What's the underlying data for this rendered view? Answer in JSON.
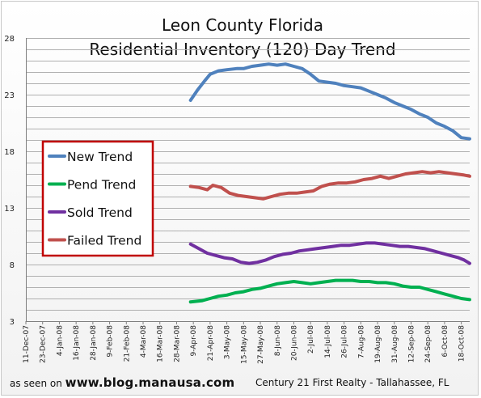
{
  "chart_data": {
    "type": "line",
    "title_lines": [
      "Leon County Florida",
      "Residential Inventory (120) Day Trend"
    ],
    "xlabel": "",
    "ylabel": "",
    "ylim": [
      3,
      28
    ],
    "y_ticks": [
      "3",
      "8",
      "13",
      "18",
      "23",
      "28"
    ],
    "x_ticks": [
      "11-Dec-07",
      "23-Dec-07",
      "4-Jan-08",
      "16-Jan-08",
      "28-Jan-08",
      "9-Feb-08",
      "21-Feb-08",
      "4-Mar-08",
      "16-Mar-08",
      "28-Mar-08",
      "9-Apr-08",
      "21-Apr-08",
      "3-May-08",
      "15-May-08",
      "27-May-08",
      "8-Jun-08",
      "20-Jun-08",
      "2-Jul-08",
      "14-Jul-08",
      "26-Jul-08",
      "7-Aug-08",
      "19-Aug-08",
      "31-Aug-08",
      "12-Sep-08",
      "24-Sep-08",
      "6-Oct-08",
      "18-Oct-08"
    ],
    "x_start": "11-Dec-07",
    "x_end": "24-Oct-08",
    "grid": "horizontal",
    "legend_position": "left",
    "series": [
      {
        "name": "New Trend",
        "color": "#4f81bd",
        "points": [
          [
            "7-Apr-08",
            22.5
          ],
          [
            "12-Apr-08",
            23.4
          ],
          [
            "17-Apr-08",
            24.2
          ],
          [
            "21-Apr-08",
            24.8
          ],
          [
            "27-Apr-08",
            25.1
          ],
          [
            "3-May-08",
            25.2
          ],
          [
            "10-May-08",
            25.3
          ],
          [
            "15-May-08",
            25.3
          ],
          [
            "21-May-08",
            25.5
          ],
          [
            "27-May-08",
            25.6
          ],
          [
            "2-Jun-08",
            25.7
          ],
          [
            "8-Jun-08",
            25.6
          ],
          [
            "14-Jun-08",
            25.7
          ],
          [
            "20-Jun-08",
            25.5
          ],
          [
            "26-Jun-08",
            25.3
          ],
          [
            "2-Jul-08",
            24.8
          ],
          [
            "8-Jul-08",
            24.2
          ],
          [
            "14-Jul-08",
            24.1
          ],
          [
            "20-Jul-08",
            24.0
          ],
          [
            "26-Jul-08",
            23.8
          ],
          [
            "1-Aug-08",
            23.7
          ],
          [
            "7-Aug-08",
            23.6
          ],
          [
            "13-Aug-08",
            23.3
          ],
          [
            "19-Aug-08",
            23.0
          ],
          [
            "25-Aug-08",
            22.7
          ],
          [
            "31-Aug-08",
            22.3
          ],
          [
            "6-Sep-08",
            22.0
          ],
          [
            "12-Sep-08",
            21.7
          ],
          [
            "18-Sep-08",
            21.3
          ],
          [
            "24-Sep-08",
            21.0
          ],
          [
            "30-Sep-08",
            20.5
          ],
          [
            "6-Oct-08",
            20.2
          ],
          [
            "12-Oct-08",
            19.8
          ],
          [
            "18-Oct-08",
            19.2
          ],
          [
            "24-Oct-08",
            19.1
          ]
        ]
      },
      {
        "name": "Pend Trend",
        "color": "#00b050",
        "points": [
          [
            "7-Apr-08",
            4.7
          ],
          [
            "15-Apr-08",
            4.8
          ],
          [
            "21-Apr-08",
            5.0
          ],
          [
            "27-Apr-08",
            5.2
          ],
          [
            "3-May-08",
            5.3
          ],
          [
            "9-May-08",
            5.5
          ],
          [
            "15-May-08",
            5.6
          ],
          [
            "21-May-08",
            5.8
          ],
          [
            "27-May-08",
            5.9
          ],
          [
            "2-Jun-08",
            6.1
          ],
          [
            "8-Jun-08",
            6.3
          ],
          [
            "14-Jun-08",
            6.4
          ],
          [
            "20-Jun-08",
            6.5
          ],
          [
            "26-Jun-08",
            6.4
          ],
          [
            "2-Jul-08",
            6.3
          ],
          [
            "8-Jul-08",
            6.4
          ],
          [
            "14-Jul-08",
            6.5
          ],
          [
            "20-Jul-08",
            6.6
          ],
          [
            "26-Jul-08",
            6.6
          ],
          [
            "1-Aug-08",
            6.6
          ],
          [
            "7-Aug-08",
            6.5
          ],
          [
            "13-Aug-08",
            6.5
          ],
          [
            "19-Aug-08",
            6.4
          ],
          [
            "25-Aug-08",
            6.4
          ],
          [
            "31-Aug-08",
            6.3
          ],
          [
            "6-Sep-08",
            6.1
          ],
          [
            "12-Sep-08",
            6.0
          ],
          [
            "18-Sep-08",
            6.0
          ],
          [
            "24-Sep-08",
            5.8
          ],
          [
            "30-Sep-08",
            5.6
          ],
          [
            "6-Oct-08",
            5.4
          ],
          [
            "12-Oct-08",
            5.2
          ],
          [
            "18-Oct-08",
            5.0
          ],
          [
            "24-Oct-08",
            4.9
          ]
        ]
      },
      {
        "name": "Sold Trend",
        "color": "#7030a0",
        "points": [
          [
            "7-Apr-08",
            9.8
          ],
          [
            "13-Apr-08",
            9.4
          ],
          [
            "19-Apr-08",
            9.0
          ],
          [
            "25-Apr-08",
            8.8
          ],
          [
            "1-May-08",
            8.6
          ],
          [
            "7-May-08",
            8.5
          ],
          [
            "13-May-08",
            8.2
          ],
          [
            "19-May-08",
            8.1
          ],
          [
            "25-May-08",
            8.2
          ],
          [
            "31-May-08",
            8.4
          ],
          [
            "6-Jun-08",
            8.7
          ],
          [
            "12-Jun-08",
            8.9
          ],
          [
            "18-Jun-08",
            9.0
          ],
          [
            "24-Jun-08",
            9.2
          ],
          [
            "30-Jun-08",
            9.3
          ],
          [
            "6-Jul-08",
            9.4
          ],
          [
            "12-Jul-08",
            9.5
          ],
          [
            "18-Jul-08",
            9.6
          ],
          [
            "24-Jul-08",
            9.7
          ],
          [
            "30-Jul-08",
            9.7
          ],
          [
            "5-Aug-08",
            9.8
          ],
          [
            "11-Aug-08",
            9.9
          ],
          [
            "17-Aug-08",
            9.9
          ],
          [
            "23-Aug-08",
            9.8
          ],
          [
            "29-Aug-08",
            9.7
          ],
          [
            "4-Sep-08",
            9.6
          ],
          [
            "10-Sep-08",
            9.6
          ],
          [
            "16-Sep-08",
            9.5
          ],
          [
            "22-Sep-08",
            9.4
          ],
          [
            "28-Sep-08",
            9.2
          ],
          [
            "4-Oct-08",
            9.0
          ],
          [
            "10-Oct-08",
            8.8
          ],
          [
            "16-Oct-08",
            8.6
          ],
          [
            "20-Oct-08",
            8.4
          ],
          [
            "24-Oct-08",
            8.1
          ]
        ]
      },
      {
        "name": "Failed Trend",
        "color": "#c0504d",
        "points": [
          [
            "7-Apr-08",
            14.9
          ],
          [
            "13-Apr-08",
            14.8
          ],
          [
            "19-Apr-08",
            14.6
          ],
          [
            "23-Apr-08",
            15.0
          ],
          [
            "29-Apr-08",
            14.8
          ],
          [
            "5-May-08",
            14.3
          ],
          [
            "11-May-08",
            14.1
          ],
          [
            "17-May-08",
            14.0
          ],
          [
            "23-May-08",
            13.9
          ],
          [
            "29-May-08",
            13.8
          ],
          [
            "4-Jun-08",
            14.0
          ],
          [
            "10-Jun-08",
            14.2
          ],
          [
            "16-Jun-08",
            14.3
          ],
          [
            "22-Jun-08",
            14.3
          ],
          [
            "28-Jun-08",
            14.4
          ],
          [
            "4-Jul-08",
            14.5
          ],
          [
            "10-Jul-08",
            14.9
          ],
          [
            "16-Jul-08",
            15.1
          ],
          [
            "22-Jul-08",
            15.2
          ],
          [
            "28-Jul-08",
            15.2
          ],
          [
            "3-Aug-08",
            15.3
          ],
          [
            "9-Aug-08",
            15.5
          ],
          [
            "15-Aug-08",
            15.6
          ],
          [
            "21-Aug-08",
            15.8
          ],
          [
            "27-Aug-08",
            15.6
          ],
          [
            "2-Sep-08",
            15.8
          ],
          [
            "8-Sep-08",
            16.0
          ],
          [
            "14-Sep-08",
            16.1
          ],
          [
            "20-Sep-08",
            16.2
          ],
          [
            "26-Sep-08",
            16.1
          ],
          [
            "2-Oct-08",
            16.2
          ],
          [
            "8-Oct-08",
            16.1
          ],
          [
            "14-Oct-08",
            16.0
          ],
          [
            "20-Oct-08",
            15.9
          ],
          [
            "24-Oct-08",
            15.8
          ]
        ]
      }
    ]
  },
  "footer": {
    "prefix": "as seen on",
    "site": "www.blog.manausa.com",
    "credit": "Century 21 First Realty - Tallahassee,  FL"
  }
}
